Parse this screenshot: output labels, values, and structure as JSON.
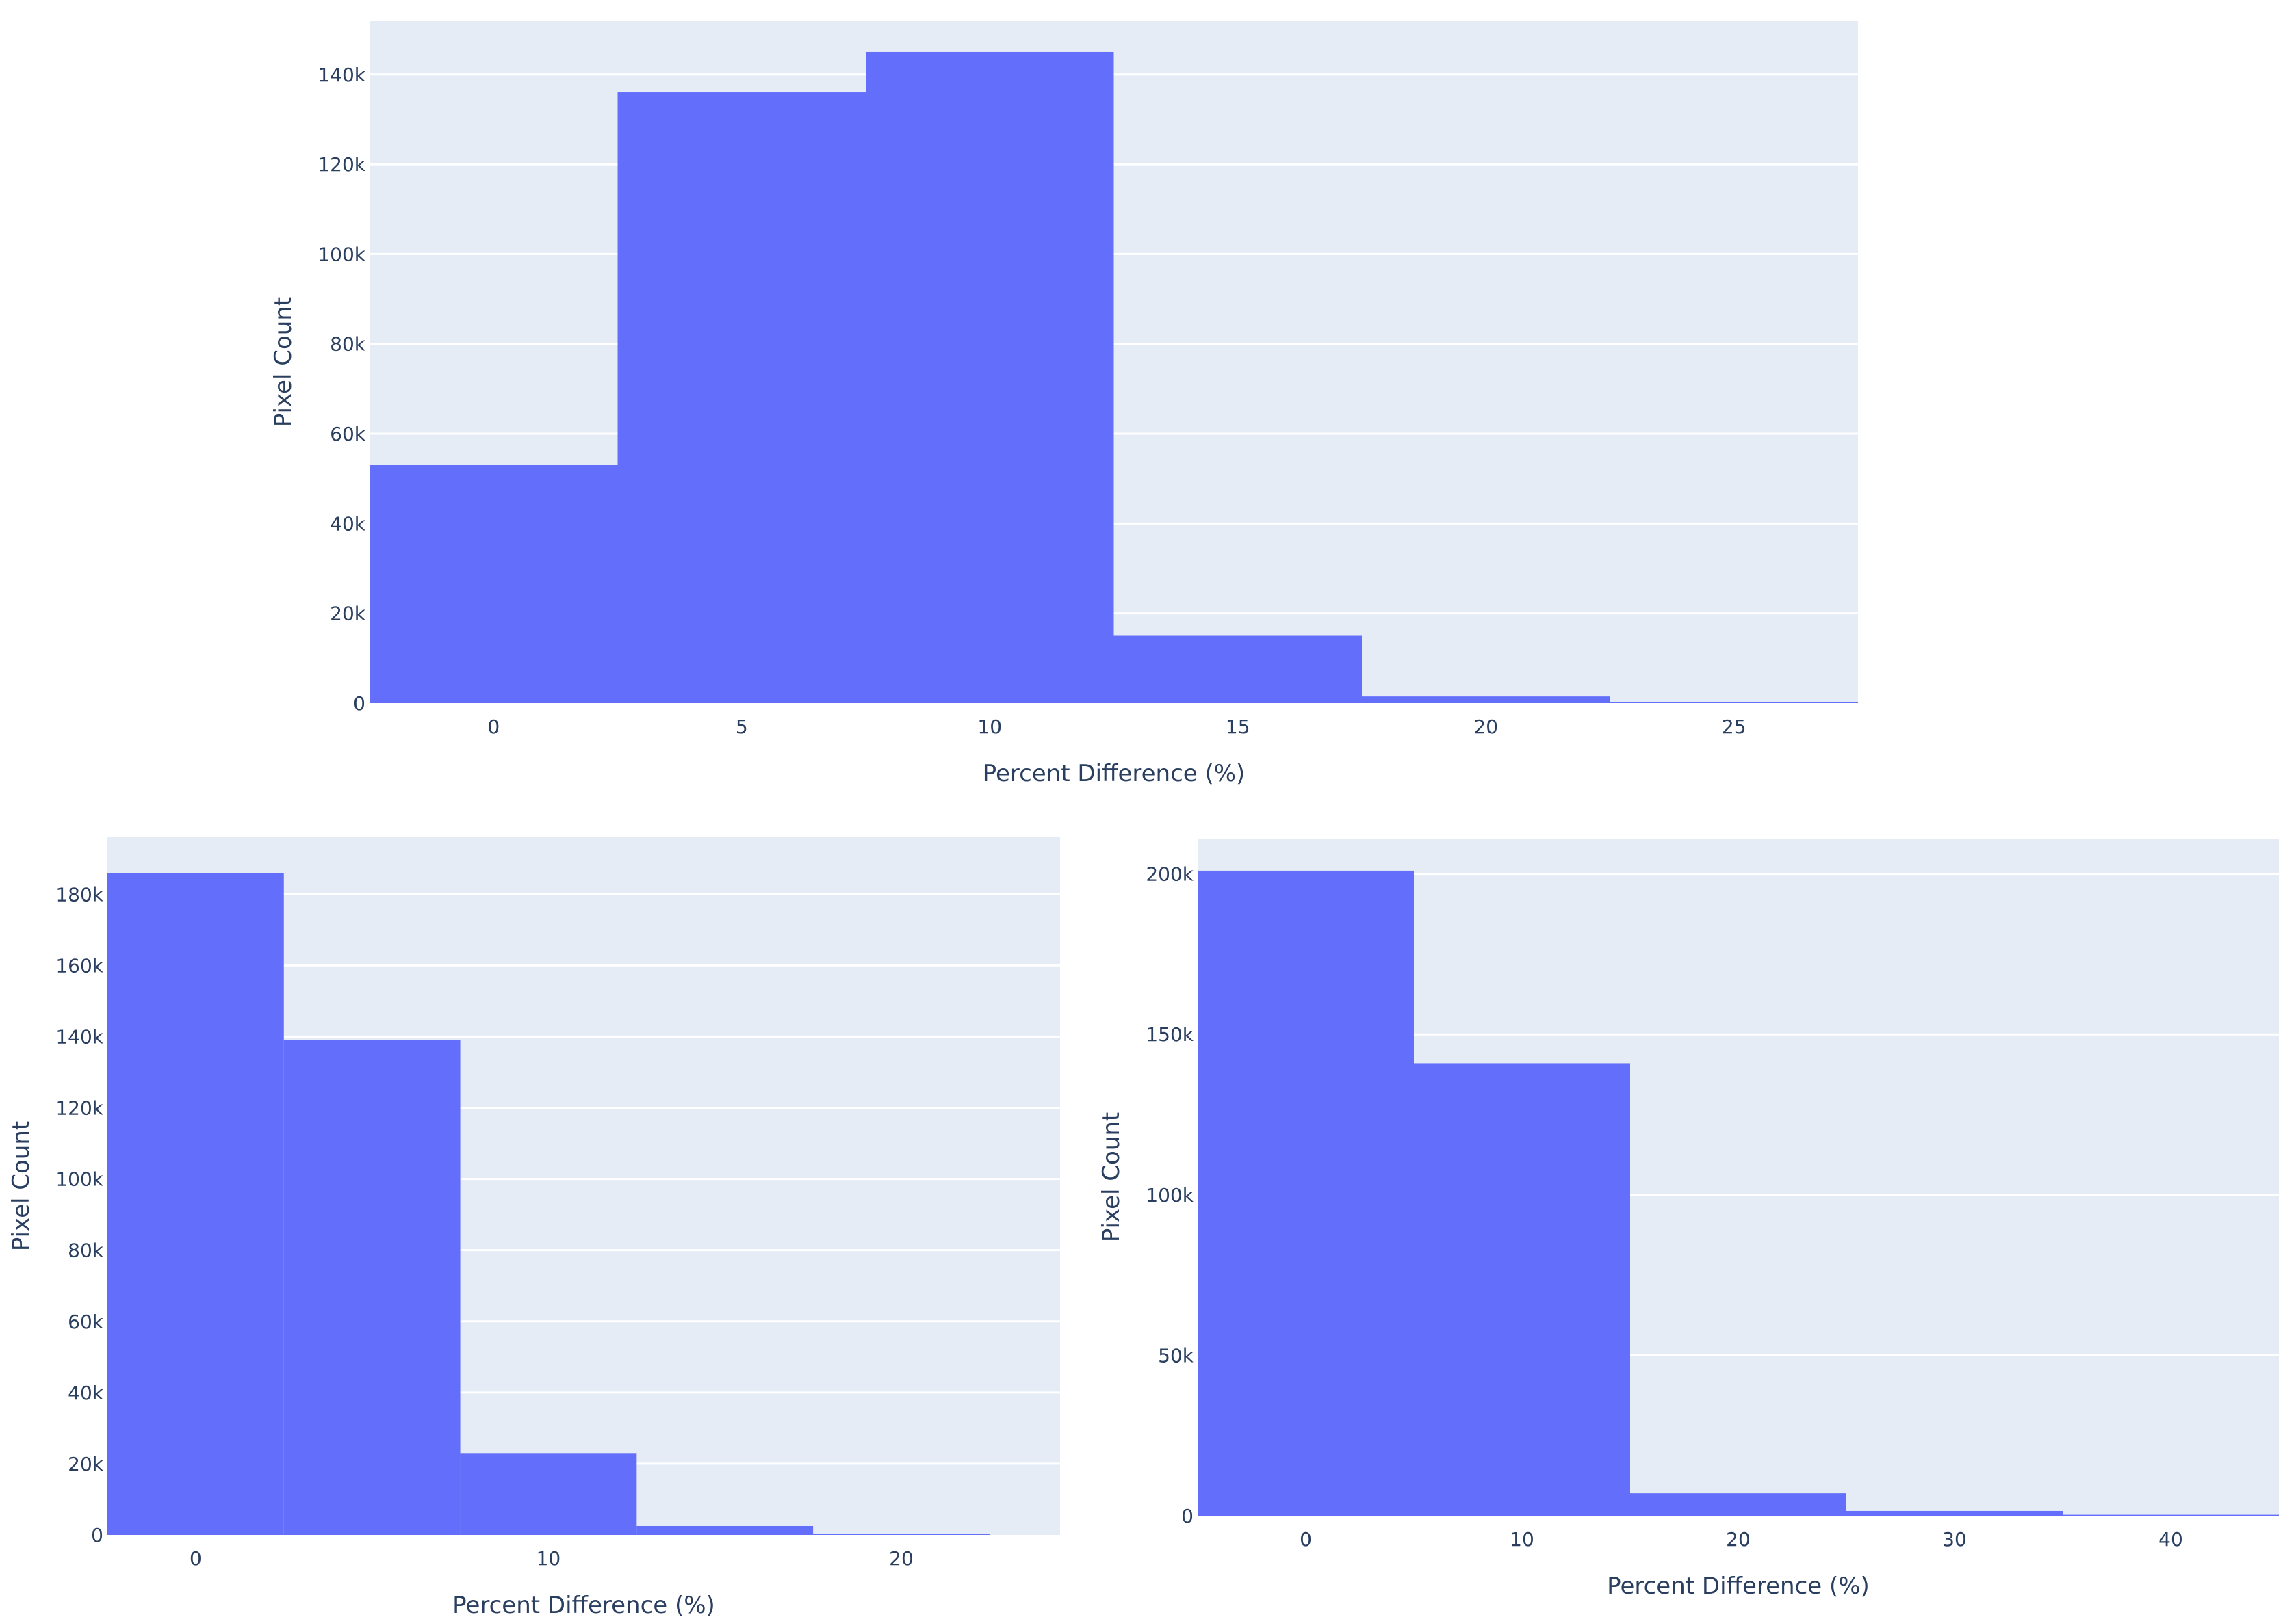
{
  "chart_data": [
    {
      "type": "bar",
      "bin_width": 5,
      "x": [
        0,
        5,
        10,
        15,
        20,
        25
      ],
      "values": [
        53000,
        136000,
        145000,
        15000,
        1500,
        300
      ],
      "xlabel": "Percent Difference (%)",
      "ylabel": "Pixel Count",
      "xlim": [
        -2.5,
        27.5
      ],
      "ylim": [
        0,
        152000
      ],
      "x_ticks": [
        0,
        5,
        10,
        15,
        20,
        25
      ],
      "x_tick_labels": [
        "0",
        "5",
        "10",
        "15",
        "20",
        "25"
      ],
      "y_ticks": [
        0,
        20000,
        40000,
        60000,
        80000,
        100000,
        120000,
        140000
      ],
      "y_tick_labels": [
        "0",
        "20k",
        "40k",
        "60k",
        "80k",
        "100k",
        "120k",
        "140k"
      ],
      "bar_color": "#636efa",
      "plot_bg": "#e5ecf6",
      "grid": true
    },
    {
      "type": "bar",
      "bin_width": 5,
      "x": [
        0,
        5,
        10,
        15,
        20
      ],
      "values": [
        186000,
        139000,
        23000,
        2500,
        300
      ],
      "xlabel": "Percent Difference (%)",
      "ylabel": "Pixel Count",
      "xlim": [
        -2.5,
        24.5
      ],
      "ylim": [
        0,
        196000
      ],
      "x_ticks": [
        0,
        10,
        20
      ],
      "x_tick_labels": [
        "0",
        "10",
        "20"
      ],
      "y_ticks": [
        0,
        20000,
        40000,
        60000,
        80000,
        100000,
        120000,
        140000,
        160000,
        180000
      ],
      "y_tick_labels": [
        "0",
        "20k",
        "40k",
        "60k",
        "80k",
        "100k",
        "120k",
        "140k",
        "160k",
        "180k"
      ],
      "bar_color": "#636efa",
      "plot_bg": "#e5ecf6",
      "grid": true
    },
    {
      "type": "bar",
      "bin_width": 10,
      "x": [
        0,
        10,
        20,
        30,
        40
      ],
      "values": [
        201000,
        141000,
        7000,
        1500,
        300
      ],
      "xlabel": "Percent Difference (%)",
      "ylabel": "Pixel Count",
      "xlim": [
        -5,
        45
      ],
      "ylim": [
        0,
        211000
      ],
      "x_ticks": [
        0,
        10,
        20,
        30,
        40
      ],
      "x_tick_labels": [
        "0",
        "10",
        "20",
        "30",
        "40"
      ],
      "y_ticks": [
        0,
        50000,
        100000,
        150000,
        200000
      ],
      "y_tick_labels": [
        "0",
        "50k",
        "100k",
        "150k",
        "200k"
      ],
      "bar_color": "#636efa",
      "plot_bg": "#e5ecf6",
      "grid": true
    }
  ]
}
